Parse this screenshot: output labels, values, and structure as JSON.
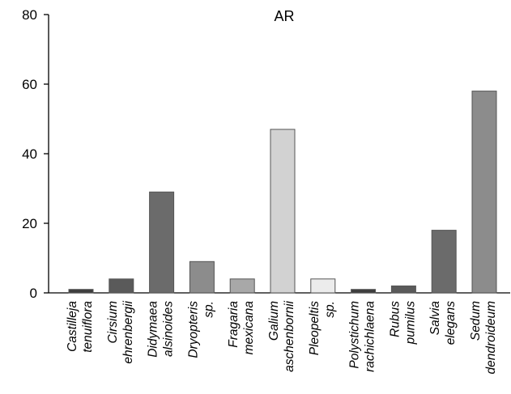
{
  "chart_data": {
    "type": "bar",
    "title": "AR",
    "xlabel": "",
    "ylabel": "",
    "ylim": [
      0,
      80
    ],
    "yticks": [
      0,
      20,
      40,
      60,
      80
    ],
    "grid": false,
    "categories": [
      [
        "Castilleja",
        "tenuiflora"
      ],
      [
        "Cirsium",
        "ehrenbergii"
      ],
      [
        "Didymaea",
        "alsinoides"
      ],
      [
        "Dryopteris",
        "sp."
      ],
      [
        "Fragaria",
        "mexicana"
      ],
      [
        "Galium",
        "aschenbornii"
      ],
      [
        "Pleopeltis",
        "sp."
      ],
      [
        "Polystichum",
        "rachichlaena"
      ],
      [
        "Rubus",
        "pumilus"
      ],
      [
        "Salvia",
        "elegans"
      ],
      [
        "Sedum",
        "dendroideum"
      ]
    ],
    "values": [
      1,
      4,
      29,
      9,
      4,
      47,
      4,
      1,
      2,
      18,
      58
    ],
    "bar_colors": [
      "#3d3d3d",
      "#5a5a5a",
      "#6b6b6b",
      "#8c8c8c",
      "#a8a8a8",
      "#d2d2d2",
      "#ececec",
      "#3d3d3d",
      "#5a5a5a",
      "#6b6b6b",
      "#8c8c8c"
    ]
  }
}
